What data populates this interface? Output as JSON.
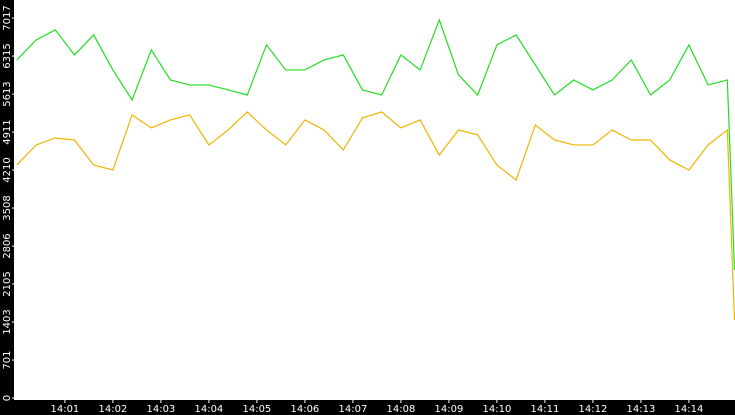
{
  "chart_data": {
    "type": "line",
    "x": [
      0,
      0.4,
      0.8,
      1.2,
      1.6,
      2.0,
      2.4,
      2.8,
      3.2,
      3.6,
      4.0,
      4.4,
      4.8,
      5.2,
      5.6,
      6.0,
      6.4,
      6.8,
      7.2,
      7.6,
      8.0,
      8.4,
      8.8,
      9.2,
      9.6,
      10.0,
      10.4,
      10.8,
      11.2,
      11.6,
      12.0,
      12.4,
      12.8,
      13.2,
      13.6,
      14.0,
      14.4,
      14.8,
      14.95
    ],
    "series": [
      {
        "color": "#22dd22",
        "values": [
          6243,
          6612,
          6797,
          6335,
          6705,
          6058,
          5504,
          6428,
          5873,
          5781,
          5781,
          5689,
          5596,
          6520,
          6058,
          6058,
          6243,
          6335,
          5689,
          5596,
          6335,
          6058,
          6982,
          5966,
          5596,
          6520,
          6705,
          6151,
          5596,
          5873,
          5689,
          5873,
          6243,
          5596,
          5873,
          6520,
          5781,
          5873,
          2364
        ]
      },
      {
        "color": "#f0b400",
        "values": [
          4304,
          4673,
          4802,
          4765,
          4304,
          4211,
          5227,
          4987,
          5135,
          5227,
          4673,
          4950,
          5282,
          4950,
          4673,
          5135,
          4950,
          4581,
          5172,
          5282,
          4987,
          5135,
          4488,
          4950,
          4858,
          4304,
          4026,
          5042,
          4765,
          4673,
          4673,
          4950,
          4765,
          4765,
          4396,
          4211,
          4673,
          4950,
          1441
        ]
      }
    ],
    "xlim": [
      -0.06,
      14.96
    ],
    "xticks": [
      {
        "value": 1,
        "label": "14:01"
      },
      {
        "value": 2,
        "label": "14:02"
      },
      {
        "value": 3,
        "label": "14:03"
      },
      {
        "value": 4,
        "label": "14:04"
      },
      {
        "value": 5,
        "label": "14:05"
      },
      {
        "value": 6,
        "label": "14:06"
      },
      {
        "value": 7,
        "label": "14:07"
      },
      {
        "value": 8,
        "label": "14:08"
      },
      {
        "value": 9,
        "label": "14:09"
      },
      {
        "value": 10,
        "label": "14:10"
      },
      {
        "value": 11,
        "label": "14:11"
      },
      {
        "value": 12,
        "label": "14:12"
      },
      {
        "value": 13,
        "label": "14:13"
      },
      {
        "value": 14,
        "label": "14:14"
      }
    ],
    "ylim": [
      0,
      7350
    ],
    "yticks": [
      0,
      701,
      1403,
      2105,
      2806,
      3508,
      4210,
      4911,
      5613,
      6315,
      7017
    ]
  }
}
